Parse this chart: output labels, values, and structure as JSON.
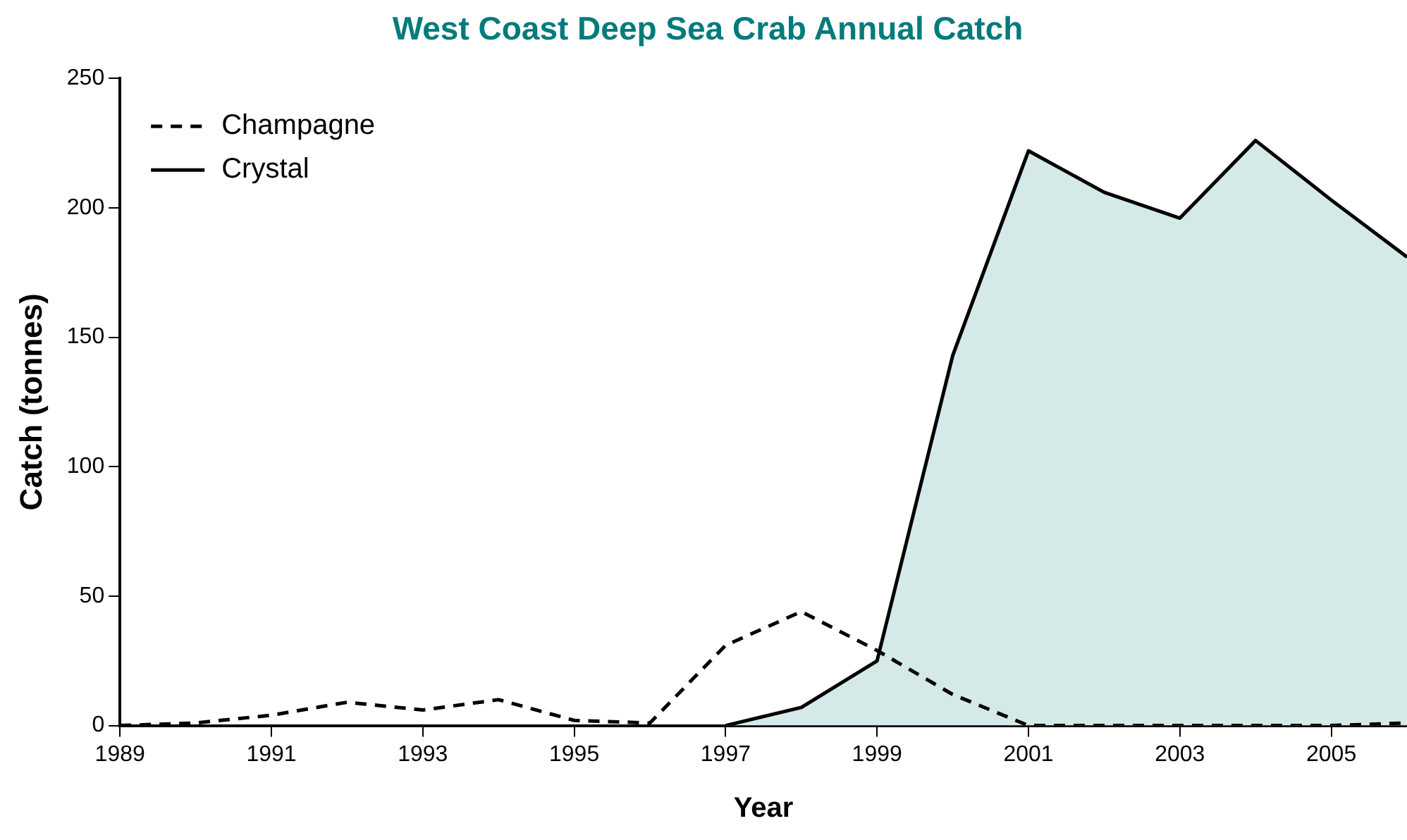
{
  "chart_data": {
    "type": "line",
    "title": "West Coast Deep Sea Crab Annual Catch",
    "xlabel": "Year",
    "ylabel": "Catch (tonnes)",
    "x": [
      1989,
      1990,
      1991,
      1992,
      1993,
      1994,
      1995,
      1996,
      1997,
      1998,
      1999,
      2000,
      2001,
      2002,
      2003,
      2004,
      2005,
      2006
    ],
    "series": [
      {
        "name": "Champagne",
        "type": "line",
        "color": "#000000",
        "line_style": "dashed",
        "values": [
          0,
          1,
          4,
          9,
          6,
          10,
          2,
          1,
          31,
          44,
          29,
          12,
          0,
          0,
          0,
          0,
          0,
          1
        ]
      },
      {
        "name": "Crystal",
        "type": "area",
        "color": "#000000",
        "values": [
          null,
          null,
          null,
          null,
          null,
          null,
          null,
          null,
          0,
          7,
          25,
          143,
          222,
          206,
          196,
          226,
          203,
          181
        ]
      }
    ],
    "xlim": [
      1989,
      2006
    ],
    "xticks": [
      1989,
      1991,
      1993,
      1995,
      1997,
      1999,
      2001,
      2003,
      2005
    ],
    "ylim": [
      0,
      250
    ],
    "yticks": [
      0,
      50,
      100,
      150,
      200,
      250
    ],
    "grid": false,
    "legend": "top left",
    "marker": "none"
  }
}
